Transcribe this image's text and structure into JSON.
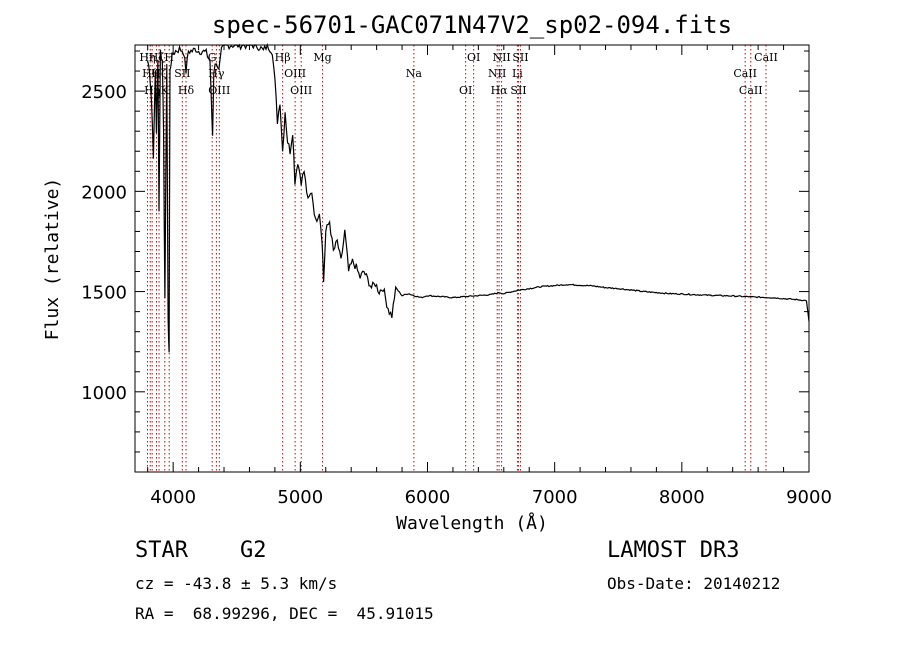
{
  "chart_data": {
    "type": "line",
    "title": "spec-56701-GAC071N47V2_sp02-094.fits",
    "xlabel": "Wavelength (Å)",
    "ylabel": "Flux (relative)",
    "xlim": [
      3700,
      9000
    ],
    "ylim": [
      600,
      2730
    ],
    "xticks": [
      4000,
      5000,
      6000,
      7000,
      8000,
      9000
    ],
    "xtick_labels": [
      "4000",
      "5000",
      "6000",
      "7000",
      "8000",
      "9000"
    ],
    "yticks": [
      1000,
      1500,
      2000,
      2500
    ],
    "ytick_labels": [
      "1000",
      "1500",
      "2000",
      "2500"
    ],
    "grid": false,
    "series": [
      {
        "name": "spectrum",
        "x": [
          3800,
          3815,
          3830,
          3845,
          3860,
          3868,
          3880,
          3889,
          3900,
          3915,
          3925,
          3935,
          3950,
          3960,
          3968,
          3975,
          3985,
          4000,
          4020,
          4050,
          4080,
          4101,
          4120,
          4150,
          4180,
          4200,
          4230,
          4260,
          4290,
          4300,
          4310,
          4320,
          4340,
          4360,
          4380,
          4400,
          4440,
          4480,
          4520,
          4560,
          4600,
          4640,
          4680,
          4710,
          4740,
          4780,
          4800,
          4820,
          4840,
          4861,
          4880,
          4900,
          4920,
          4940,
          4957,
          4980,
          5007,
          5030,
          5060,
          5090,
          5120,
          5150,
          5172,
          5183,
          5200,
          5230,
          5260,
          5290,
          5320,
          5350,
          5380,
          5410,
          5440,
          5470,
          5500,
          5530,
          5560,
          5590,
          5620,
          5650,
          5680,
          5700,
          5720,
          5750,
          5800,
          5850,
          5893,
          5950,
          6000,
          6100,
          6200,
          6300,
          6400,
          6500,
          6563,
          6600,
          6700,
          6800,
          6900,
          7000,
          7100,
          7200,
          7300,
          7400,
          7500,
          7600,
          7700,
          7800,
          7900,
          8000,
          8100,
          8200,
          8300,
          8400,
          8500,
          8600,
          8700,
          8800,
          8900,
          8980,
          9000
        ],
        "y": [
          2650,
          2600,
          2450,
          2180,
          2600,
          2300,
          2650,
          1900,
          2700,
          2650,
          2300,
          1450,
          2650,
          1350,
          1200,
          2600,
          2650,
          2690,
          2700,
          2710,
          2700,
          2600,
          2700,
          2700,
          2710,
          2700,
          2700,
          2690,
          2650,
          2450,
          2280,
          2600,
          2650,
          2600,
          2700,
          2720,
          2730,
          2730,
          2730,
          2730,
          2730,
          2730,
          2720,
          2700,
          2730,
          2700,
          2550,
          2350,
          2450,
          2200,
          2400,
          2250,
          2200,
          2300,
          2050,
          2150,
          2050,
          2100,
          1950,
          2000,
          1850,
          1900,
          1750,
          1550,
          1800,
          1850,
          1700,
          1750,
          1650,
          1800,
          1600,
          1650,
          1620,
          1570,
          1600,
          1560,
          1520,
          1540,
          1500,
          1520,
          1440,
          1400,
          1380,
          1520,
          1480,
          1490,
          1480,
          1470,
          1480,
          1475,
          1470,
          1475,
          1480,
          1485,
          1495,
          1490,
          1505,
          1515,
          1525,
          1530,
          1535,
          1532,
          1528,
          1520,
          1515,
          1508,
          1500,
          1495,
          1490,
          1488,
          1485,
          1482,
          1480,
          1478,
          1475,
          1472,
          1470,
          1465,
          1460,
          1455,
          1350
        ]
      }
    ],
    "lines": [
      {
        "x": 3798,
        "label": "Hη"
      },
      {
        "x": 3820,
        "label": "Hθ"
      },
      {
        "x": 3835,
        "label": "Hη"
      },
      {
        "x": 3869,
        "label": "Hζ"
      },
      {
        "x": 3889,
        "label": "Hζ"
      },
      {
        "x": 3934,
        "label": "K"
      },
      {
        "x": 3969,
        "label": "H"
      },
      {
        "x": 4072,
        "label": "SII"
      },
      {
        "x": 4101,
        "label": "Hδ"
      },
      {
        "x": 4307,
        "label": "G"
      },
      {
        "x": 4340,
        "label": "Hγ"
      },
      {
        "x": 4363,
        "label": "OIII"
      },
      {
        "x": 4861,
        "label": "Hβ"
      },
      {
        "x": 4959,
        "label": "OIII"
      },
      {
        "x": 5007,
        "label": "OIII"
      },
      {
        "x": 5175,
        "label": "Mg"
      },
      {
        "x": 5893,
        "label": "Na"
      },
      {
        "x": 6300,
        "label": "OI"
      },
      {
        "x": 6363,
        "label": "OI"
      },
      {
        "x": 6548,
        "label": "NII"
      },
      {
        "x": 6563,
        "label": "Hα"
      },
      {
        "x": 6583,
        "label": "NII"
      },
      {
        "x": 6707,
        "label": "Li"
      },
      {
        "x": 6716,
        "label": "SII"
      },
      {
        "x": 6731,
        "label": "SII"
      },
      {
        "x": 8498,
        "label": "CaII"
      },
      {
        "x": 8542,
        "label": "CaII"
      },
      {
        "x": 8662,
        "label": "CaII"
      }
    ]
  },
  "info": {
    "object_class": "STAR",
    "subclass": "G2",
    "survey": "LAMOST DR3",
    "cz": "cz = -43.8 ± 5.3 km/s",
    "obs_date": "Obs-Date: 20140212",
    "coords": "RA =  68.99296, DEC =  45.91015"
  },
  "colors": {
    "spectrum": "#000000",
    "line_markers": "#cc0000",
    "axes": "#000000",
    "background": "#ffffff"
  }
}
